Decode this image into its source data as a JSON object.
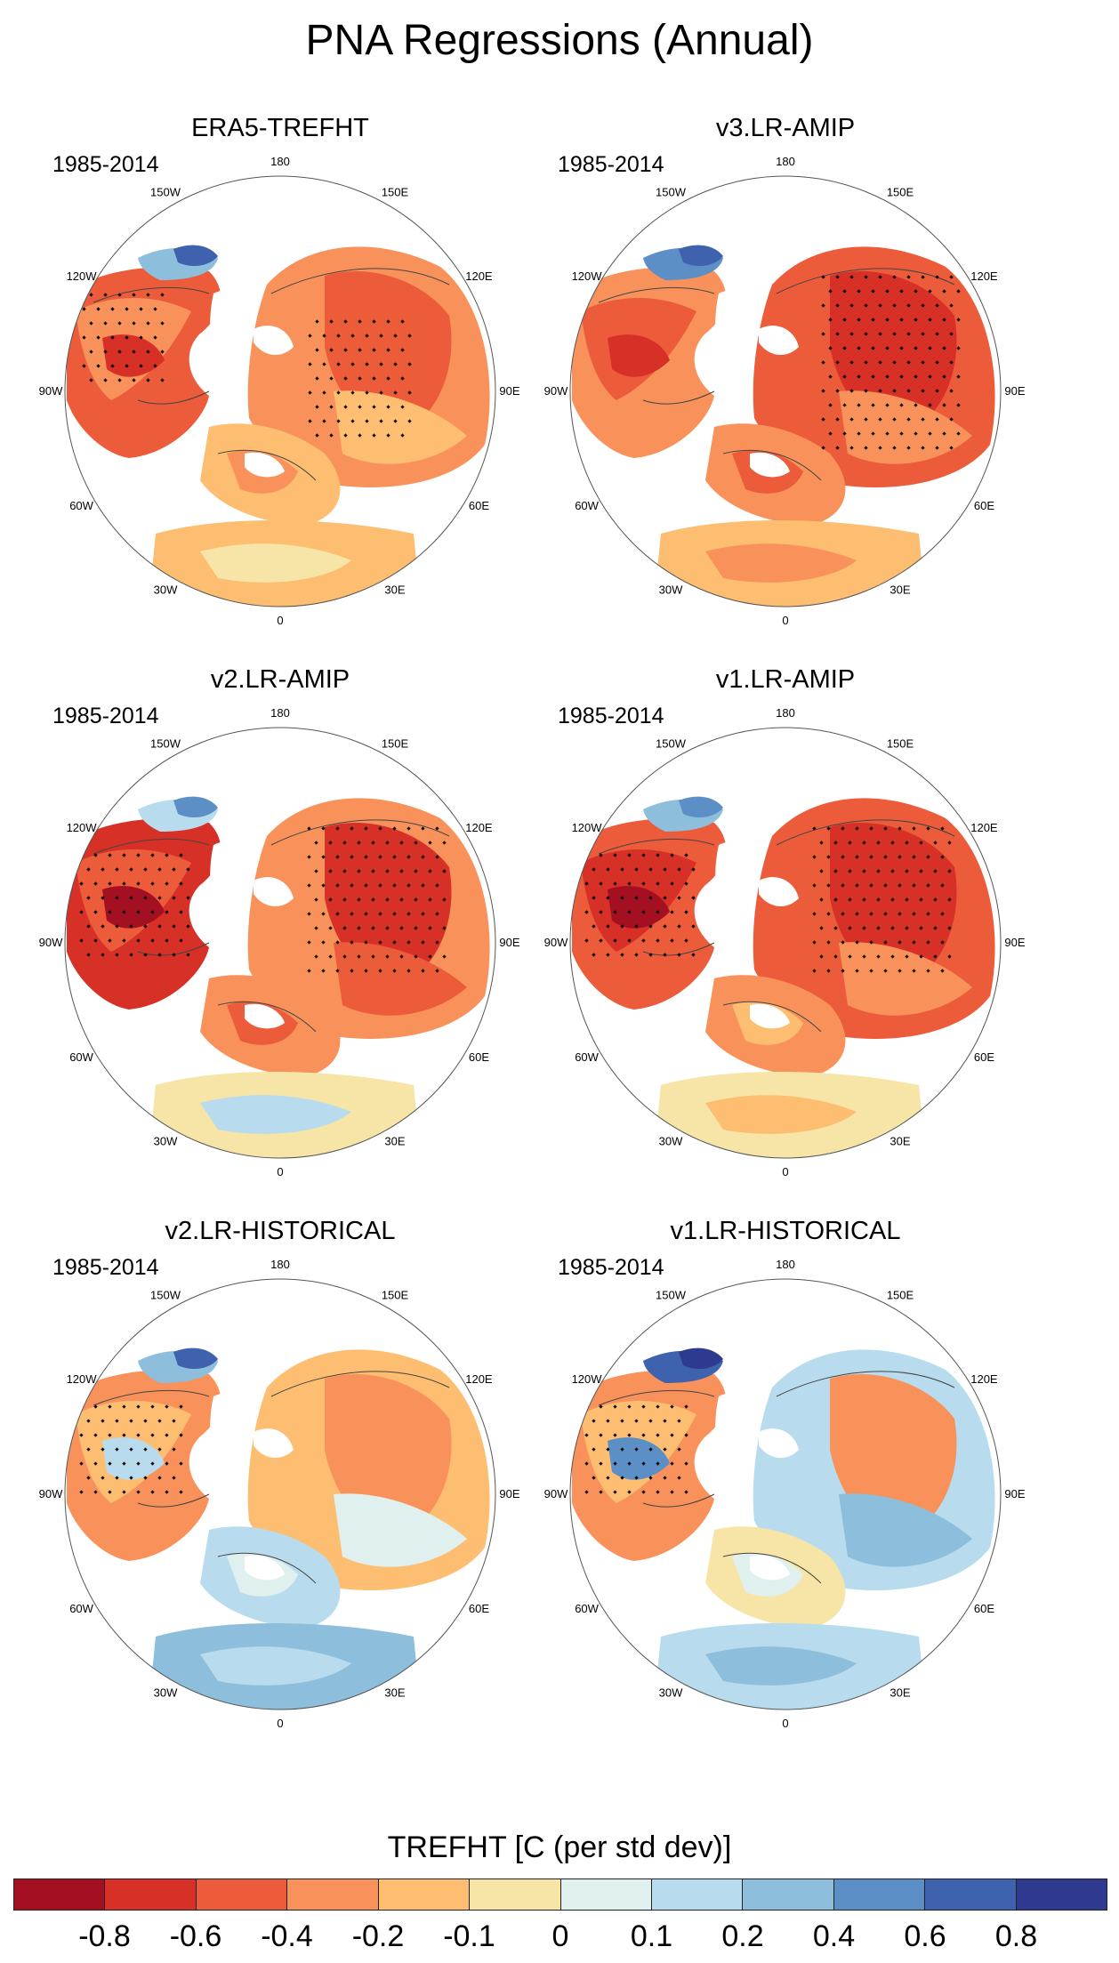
{
  "figure": {
    "title": "PNA Regressions (Annual)",
    "panels": [
      {
        "title": "ERA5-TREFHT",
        "years": "1985-2014",
        "pattern": "era5"
      },
      {
        "title": "v3.LR-AMIP",
        "years": "1985-2014",
        "pattern": "v3amip"
      },
      {
        "title": "v2.LR-AMIP",
        "years": "1985-2014",
        "pattern": "v2amip"
      },
      {
        "title": "v1.LR-AMIP",
        "years": "1985-2014",
        "pattern": "v1amip"
      },
      {
        "title": "v2.LR-HISTORICAL",
        "years": "1985-2014",
        "pattern": "v2hist"
      },
      {
        "title": "v1.LR-HISTORICAL",
        "years": "1985-2014",
        "pattern": "v1hist"
      }
    ],
    "longitude_labels": [
      "180",
      "150E",
      "120E",
      "90E",
      "60E",
      "30E",
      "0",
      "30W",
      "60W",
      "90W",
      "120W",
      "150W"
    ]
  },
  "colorbar": {
    "title": "TREFHT [C (per std dev)]",
    "tick_labels": [
      "-0.8",
      "-0.6",
      "-0.4",
      "-0.2",
      "-0.1",
      "0",
      "0.1",
      "0.2",
      "0.4",
      "0.6",
      "0.8"
    ],
    "colors": [
      "#a50f22",
      "#d73027",
      "#ec5b3a",
      "#f9925a",
      "#fdbe72",
      "#f6e5a6",
      "#e0f0ef",
      "#b8dced",
      "#8dbedc",
      "#5b8fc5",
      "#3e62ad",
      "#2e3a8f"
    ]
  }
}
